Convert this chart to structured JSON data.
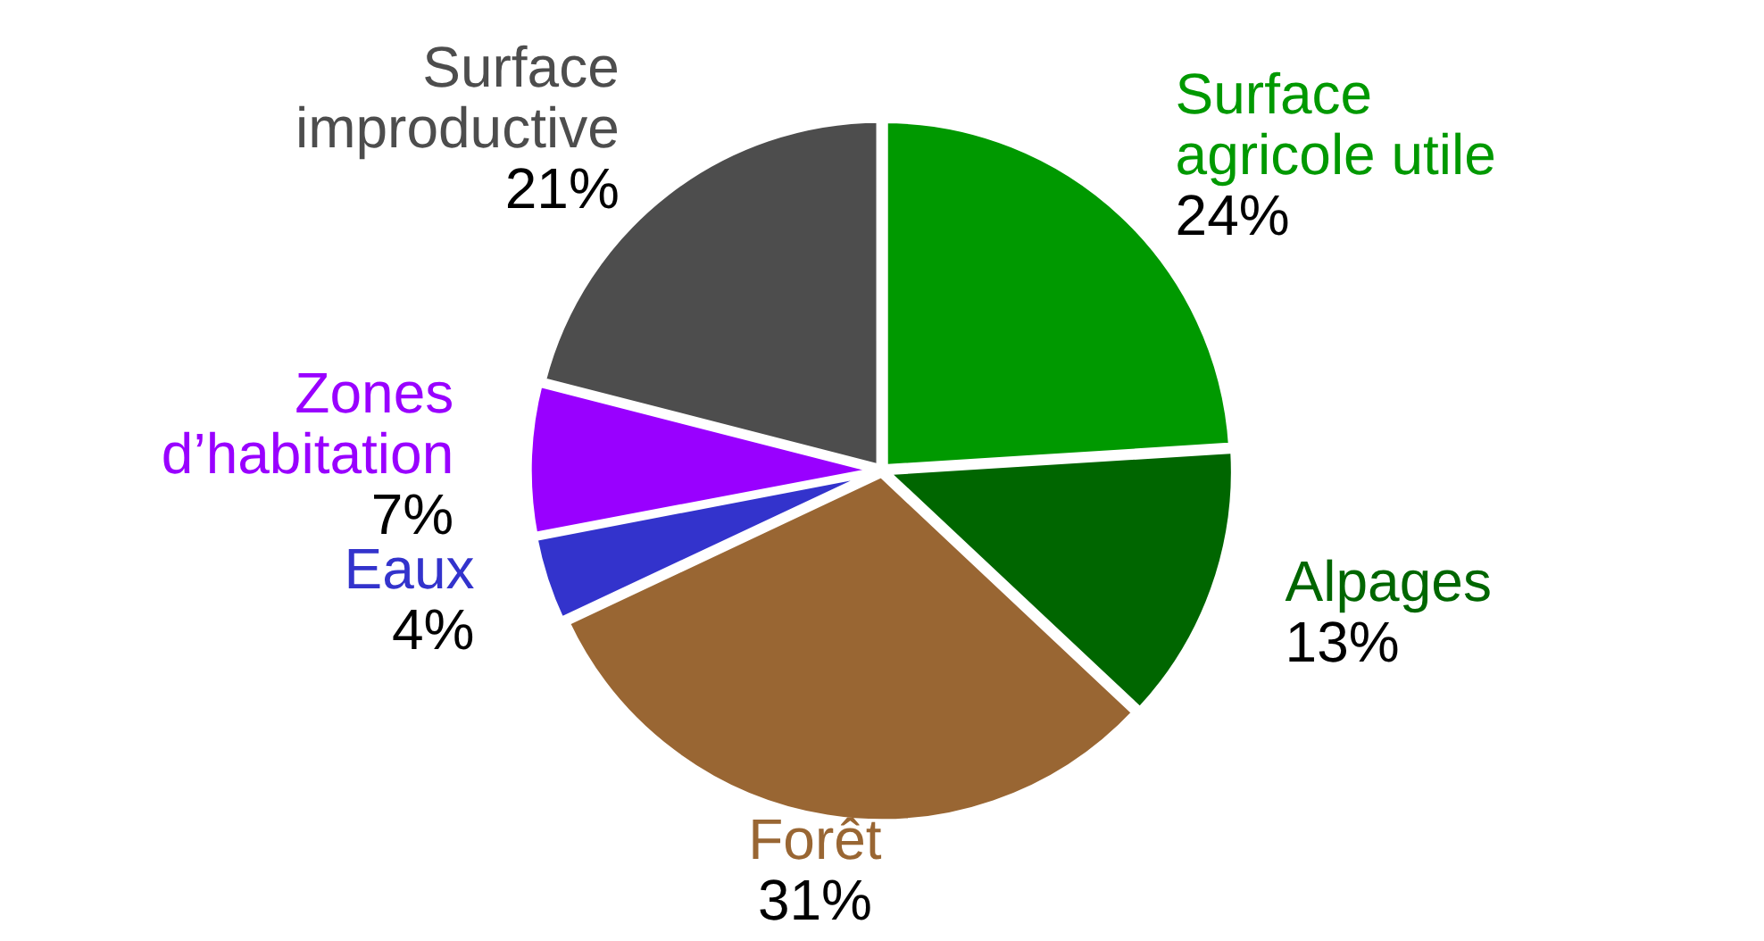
{
  "chart_data": {
    "type": "pie",
    "categories": [
      "Surface agricole utile",
      "Alpages",
      "Forêt",
      "Eaux",
      "Zones d’habitation",
      "Surface improductive"
    ],
    "values": [
      24,
      13,
      31,
      4,
      7,
      21
    ],
    "value_labels": [
      "24%",
      "13%",
      "31%",
      "4%",
      "7%",
      "21%"
    ],
    "colors": [
      "#009900",
      "#006600",
      "#996633",
      "#3333cc",
      "#9900ff",
      "#4d4d4d"
    ],
    "legend": false
  }
}
